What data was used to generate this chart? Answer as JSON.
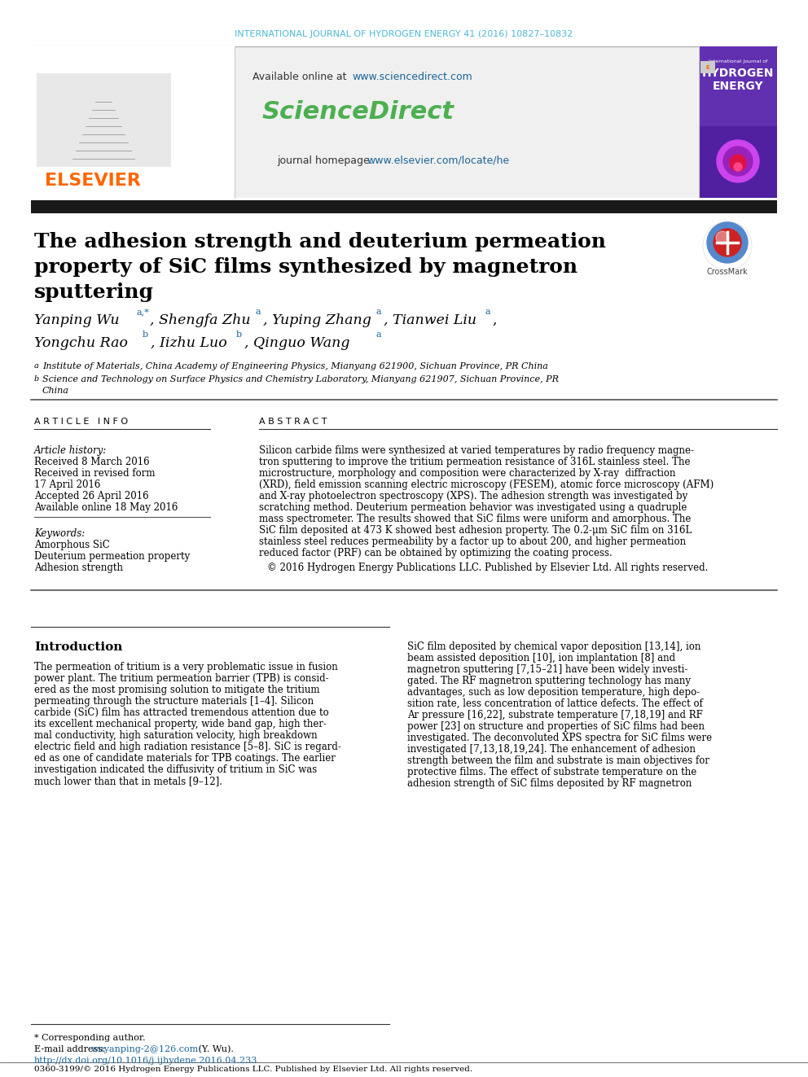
{
  "journal_header": "INTERNATIONAL JOURNAL OF HYDROGEN ENERGY 41 (2016) 10827–10832",
  "header_color": "#4db8d4",
  "available_online_text": "Available online at ",
  "sciencedirect_url": "www.sciencedirect.com",
  "sciencedirect_logo": "ScienceDirect",
  "sciencedirect_color": "#4caf50",
  "journal_homepage_text": "journal homepage: ",
  "journal_url": "www.elsevier.com/locate/he",
  "url_color": "#1a6496",
  "elsevier_color": "#ff6600",
  "black_bar_color": "#1a1a1a",
  "article_info_header": "A R T I C L E   I N F O",
  "abstract_header": "A B S T R A C T",
  "article_history_label": "Article history:",
  "received": "Received 8 March 2016",
  "revised": "Received in revised form",
  "revised2": "17 April 2016",
  "accepted": "Accepted 26 April 2016",
  "available_online": "Available online 18 May 2016",
  "keywords_label": "Keywords:",
  "keyword1": "Amorphous SiC",
  "keyword2": "Deuterium permeation property",
  "keyword3": "Adhesion strength",
  "copyright": "© 2016 Hydrogen Energy Publications LLC. Published by Elsevier Ltd. All rights reserved.",
  "intro_header": "Introduction",
  "footer_corresponding": "* Corresponding author.",
  "footer_email_label": "E-mail address: ",
  "footer_email": "wuyanping-2@126.com",
  "footer_email_name": " (Y. Wu).",
  "footer_doi": "http://dx.doi.org/10.1016/j.ijhydene.2016.04.233",
  "footer_issn": "0360-3199/© 2016 Hydrogen Energy Publications LLC. Published by Elsevier Ltd. All rights reserved.",
  "bg_header_color": "#f0f0f0",
  "text_color": "#000000",
  "affil_a": "Institute of Materials, China Academy of Engineering Physics, Mianyang 621900, Sichuan Province, PR China",
  "affil_b": "Science and Technology on Surface Physics and Chemistry Laboratory, Mianyang 621907, Sichuan Province, PR",
  "affil_b2": "China"
}
